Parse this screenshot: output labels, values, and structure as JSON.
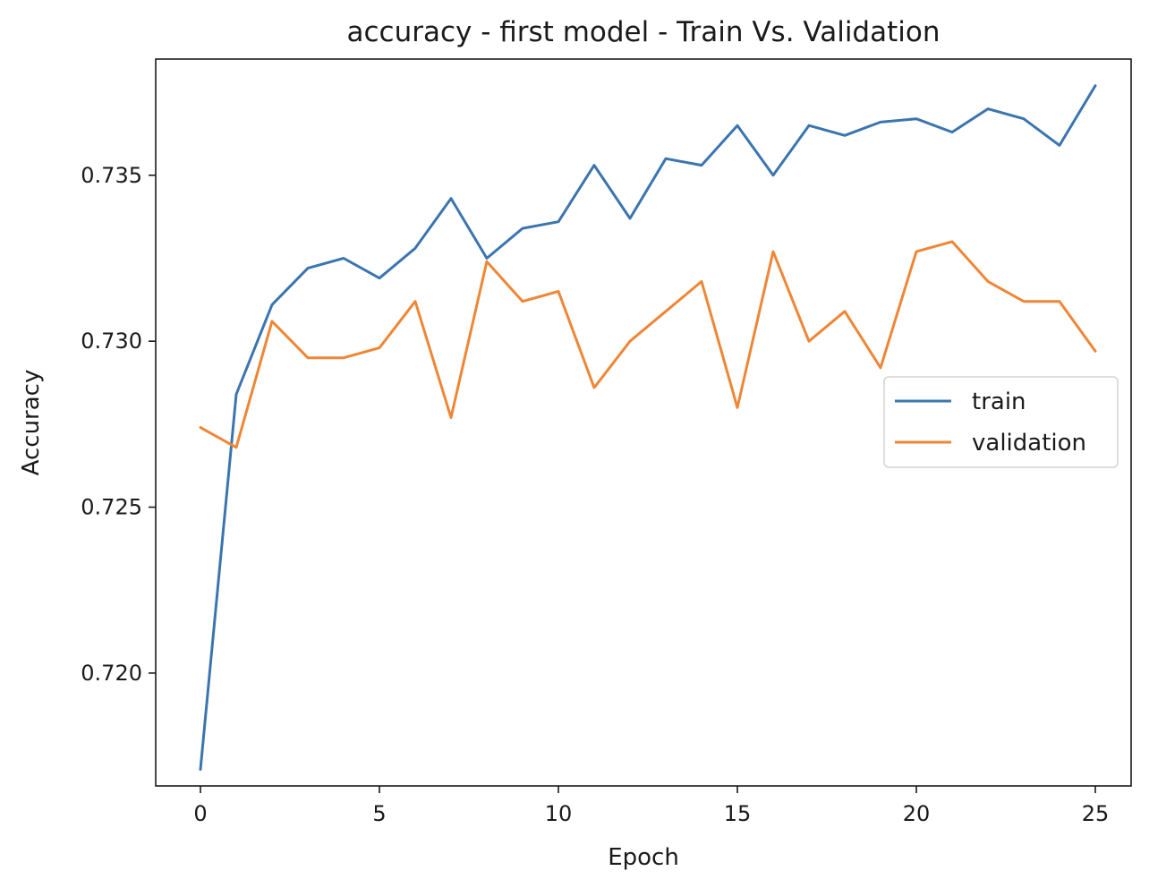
{
  "chart_data": {
    "type": "line",
    "title": "accuracy - first model - Train Vs. Validation",
    "xlabel": "Epoch",
    "ylabel": "Accuracy",
    "xlim": [
      -1.25,
      26.0
    ],
    "ylim": [
      0.7166,
      0.7385
    ],
    "xticks": [
      0,
      5,
      10,
      15,
      20,
      25
    ],
    "yticks": [
      0.72,
      0.725,
      0.73,
      0.735
    ],
    "xtick_labels": [
      "0",
      "5",
      "10",
      "15",
      "20",
      "25"
    ],
    "ytick_labels": [
      "0.720",
      "0.725",
      "0.730",
      "0.735"
    ],
    "grid": false,
    "legend_position": "center-right",
    "x": [
      0,
      1,
      2,
      3,
      4,
      5,
      6,
      7,
      8,
      9,
      10,
      11,
      12,
      13,
      14,
      15,
      16,
      17,
      18,
      19,
      20,
      21,
      22,
      23,
      24,
      25
    ],
    "series": [
      {
        "name": "train",
        "color": "#3b75af",
        "values": [
          0.7171,
          0.7284,
          0.7311,
          0.7322,
          0.7325,
          0.7319,
          0.7328,
          0.7343,
          0.7325,
          0.7334,
          0.7336,
          0.7353,
          0.7337,
          0.7355,
          0.7353,
          0.7365,
          0.735,
          0.7365,
          0.7362,
          0.7366,
          0.7367,
          0.7363,
          0.737,
          0.7367,
          0.7359,
          0.7377
        ]
      },
      {
        "name": "validation",
        "color": "#ef8636",
        "values": [
          0.7274,
          0.7268,
          0.7306,
          0.7295,
          0.7295,
          0.7298,
          0.7312,
          0.7277,
          0.7324,
          0.7312,
          0.7315,
          0.7286,
          0.73,
          0.7309,
          0.7318,
          0.728,
          0.7327,
          0.73,
          0.7309,
          0.7292,
          0.7327,
          0.733,
          0.7318,
          0.7312,
          0.7312,
          0.7297
        ]
      }
    ]
  }
}
